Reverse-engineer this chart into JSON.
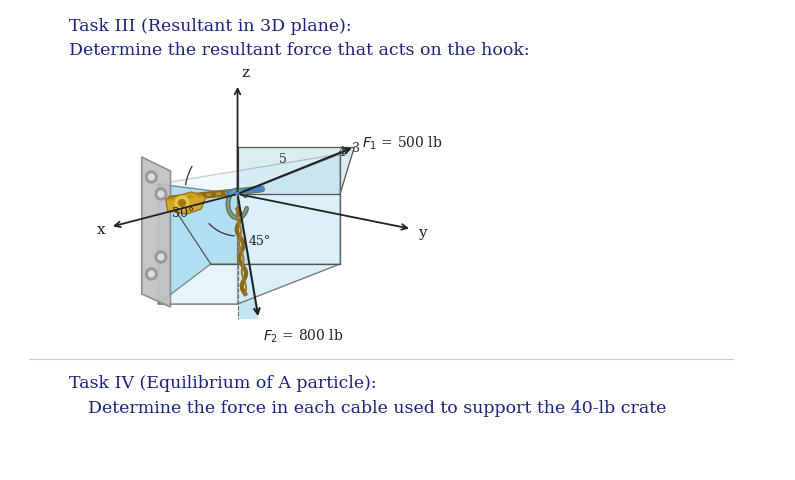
{
  "background_color": "#ffffff",
  "title1": "Task III (Resultant in 3D plane):",
  "title2": "Determine the resultant force that acts on the hook:",
  "title3": "Task IV (Equilibrium of A particle):",
  "title4": "Determine the force in each cable used to support the 40-lb crate",
  "text_color": "#1a237e",
  "title_fontsize": 12.5,
  "F1_label": "$F_1$ = 500 lb",
  "F2_label": "$F_2$ = 800 lb",
  "angle1_label": "30°",
  "angle2_label": "45°",
  "axis_x_label": "x",
  "axis_y_label": "y",
  "axis_z_label": "z",
  "box_color_left": "#87ceeb",
  "box_color_right": "#b0dff0",
  "box_color_top": "#d0eef8",
  "plate_color": "#b0b0b0",
  "hook_color": "#c8a840"
}
